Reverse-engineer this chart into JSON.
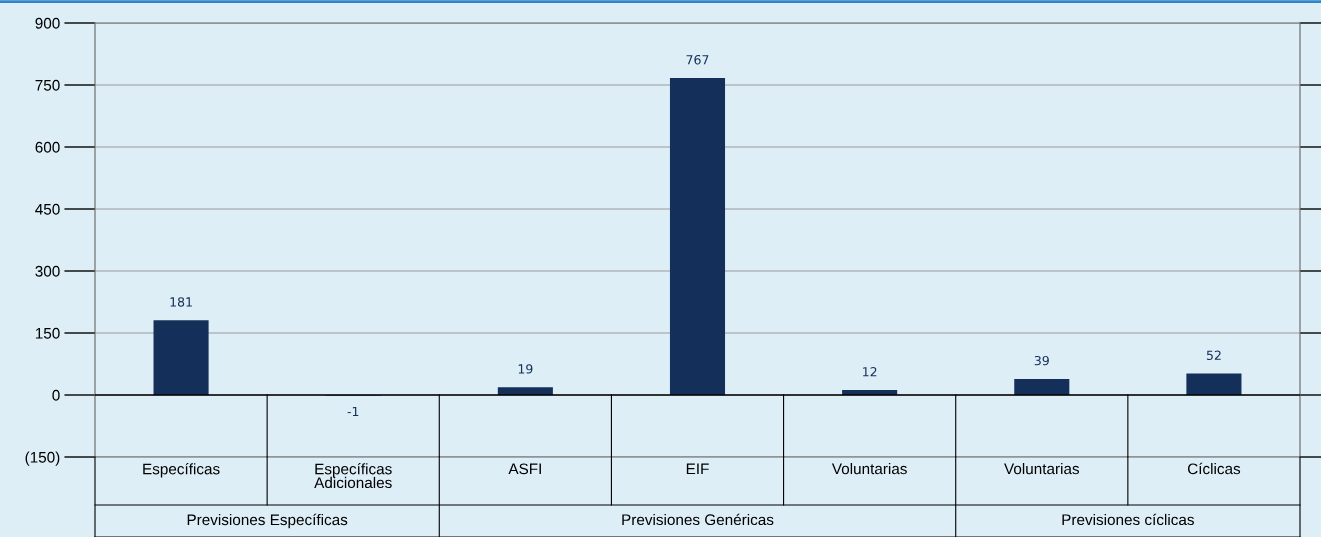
{
  "chart_data": {
    "type": "bar",
    "categories": [
      "Específicas",
      "Específicas\nAdicionales",
      "ASFI",
      "EIF",
      "Voluntarias",
      "Voluntarias",
      "Cíclicas"
    ],
    "values": [
      181,
      -1,
      19,
      767,
      12,
      39,
      52
    ],
    "color": "#14305a",
    "ylim": [
      -150,
      900
    ],
    "yticks": [
      {
        "value": -150,
        "label": "(150)"
      },
      0,
      150,
      300,
      450,
      600,
      750,
      900
    ],
    "grid": "y",
    "data_labels": true,
    "annotations": [
      "Previsiones Específicas",
      "Previsiones Genéricas",
      "Previsiones cíclicas"
    ]
  }
}
